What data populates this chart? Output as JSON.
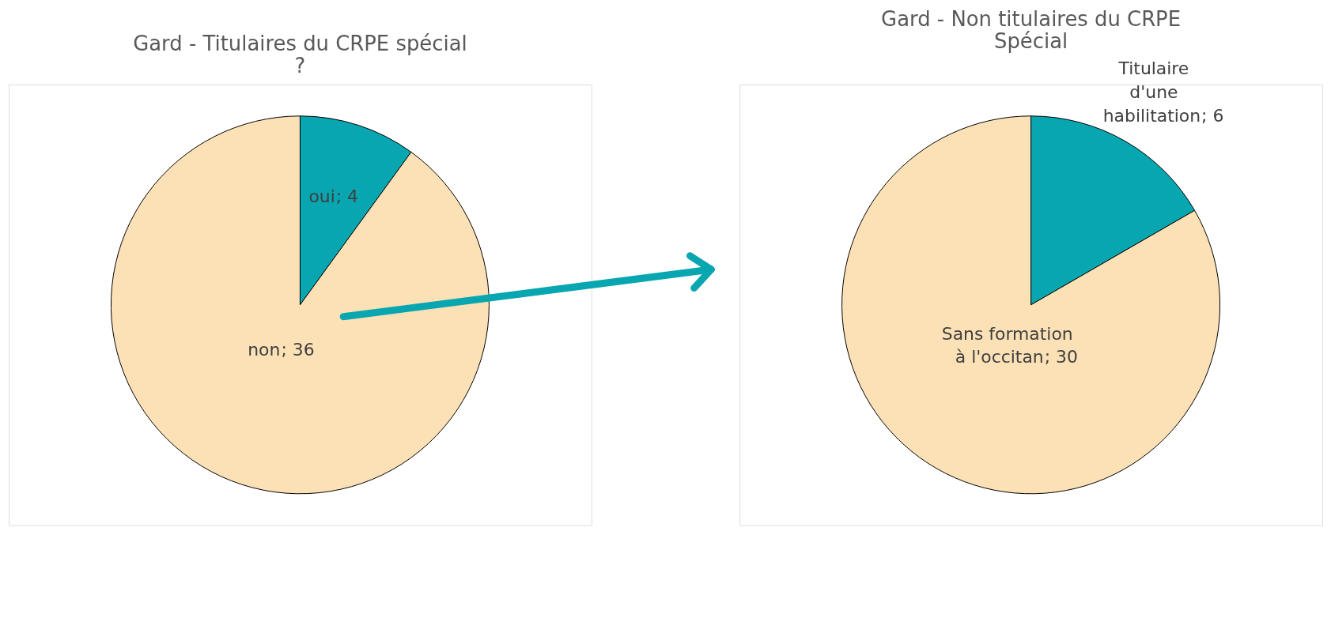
{
  "chart_data": [
    {
      "type": "pie",
      "title": "Gard - Titulaires du CRPE spécial ?",
      "categories": [
        "oui",
        "non"
      ],
      "values": [
        4,
        36
      ],
      "value_labels": [
        "; 4",
        "; 36"
      ],
      "colors": [
        "#08a6b0",
        "#fce1b6"
      ],
      "legend": false
    },
    {
      "type": "pie",
      "title": "Gard - Non titulaires du CRPE Spécial",
      "categories": [
        "Titulaire d'une habilitation",
        "Sans formation à l'occitan"
      ],
      "values": [
        6,
        30
      ],
      "value_labels": [
        "; 6",
        "; 30"
      ],
      "colors": [
        "#08a6b0",
        "#fce1b6"
      ],
      "legend": false
    }
  ]
}
